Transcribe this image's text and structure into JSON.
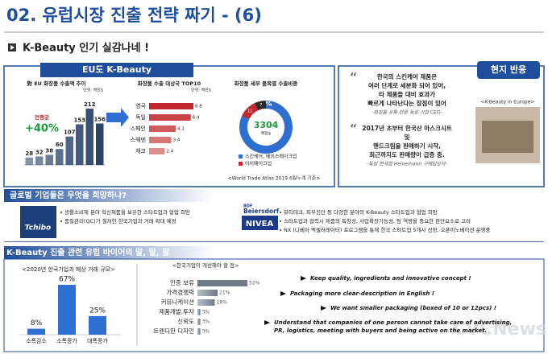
{
  "header": {
    "title": "02. 유럽시장 진출 전략 짜기 - (6)",
    "subtitle": "K-Beauty 인기 실감나네 !"
  },
  "eu_panel": {
    "title": "EU도 K-Beauty",
    "source": "<World Trade Atlas 2019.6월누계 기준>",
    "charts": [
      {
        "type": "bar",
        "title": "對 EU 화장품 수출액 추이",
        "unit": "단위: 백만$",
        "note_label": "연평균",
        "note_value": "+40%",
        "color": "#1f3864",
        "values": [
          28,
          32,
          38,
          60,
          107,
          153,
          212,
          156
        ]
      },
      {
        "type": "hbar",
        "title": "화장품 수출 대상국 TOP10",
        "unit": "단위: 백만$",
        "color": "#c0282d",
        "categories": [
          "영국",
          "독일",
          "스페인",
          "스웨덴",
          "체코"
        ],
        "values": [
          6.8,
          6.4,
          4.1,
          3.4,
          2.4
        ]
      },
      {
        "type": "donut",
        "title": "화장품 세부 품목별 수출비중",
        "center_value": "3304",
        "center_unit": "백만$",
        "colors": [
          "#2e6fd1",
          "#c0282d",
          "#2b2b2b"
        ],
        "values": [
          82,
          11,
          7
        ],
        "value_labels": [
          "82%",
          "11",
          "7"
        ],
        "legend": [
          "스킨케어, 베이스메이크업",
          "아이메이크업"
        ]
      }
    ]
  },
  "reaction_panel": {
    "title": "현지 반응",
    "quotes": [
      {
        "lines": [
          "한국의 스킨케어 제품은",
          "여러 단계로 세분화 되어 있어,",
          "타 제품들 대비 효과가",
          "빠르게 나타난다는 장점이 있어"
        ],
        "source": "-화장품 유통 전문 독일 기업 CEO-"
      },
      {
        "lines": [
          "2017년 초부터 한국산 마스크시트",
          "및",
          "핸드크림을 판매하기 시작,",
          "최근까지도 판매량이 급증 중."
        ],
        "source": "-독일 면세점 Heinemann 구매담당자-"
      }
    ],
    "photo_caption": "<K-Beauty in Europe>"
  },
  "global_section": {
    "title": "글로벌 기업들은 무엇을 희망하나?",
    "companies": [
      {
        "logo": [
          "Tchibo"
        ],
        "items": [
          "생활소비재 분야 혁신제품을 보유한 스타트업과 협업 희망",
          "품질관리(QC)가 철저한 한국기업과 거래 확대 예정"
        ]
      },
      {
        "logo": [
          "BDF",
          "Beiersdorf",
          "NIVEA"
        ],
        "items": [
          "뷰티테크, 피부진단 등 다양한 분야의 K-Beauty 스타트업과 협업 희망",
          "스타트업과 협력시 제품의 독창성, 사업확장가능성, 팀 역량을 중요한 판단요소로 고려",
          "NX (니베아 엑셀러레이터) 프로그램을 통해 한국 스타트업 5개사 선정, 오픈이노베이션 운영중"
        ]
      }
    ]
  },
  "buyer_section": {
    "title": "K-Beauty 진출 관련 유럽 바이어의 말, 말, 말",
    "charts": [
      {
        "type": "bar",
        "title": "<2020년 한국기업과 예상 거래 규모>",
        "color": "#2e6fd1",
        "categories": [
          "소폭감소",
          "소폭증가",
          "대폭증가"
        ],
        "values": [
          8,
          67,
          25
        ],
        "value_labels": [
          "8%",
          "67%",
          "25%"
        ]
      },
      {
        "type": "hbar",
        "title": "<한국기업이 개선해야 할 점>",
        "color": "#9aa3ad",
        "categories": [
          "인증 보유",
          "가격경쟁력",
          "커뮤니케이션",
          "제품개발,투자",
          "신뢰도",
          "트렌디한 디자인"
        ],
        "values": [
          52,
          21,
          18,
          3,
          3,
          3
        ],
        "value_labels": [
          "52%",
          "21%",
          "18%",
          "3%",
          "3%",
          "3%"
        ]
      }
    ],
    "quotes": [
      "Keep quality, ingredients and innovative concept !",
      "Packaging more clear-description in English !",
      "We want smaller packaging (boxed of 10 or 12pcs) !",
      "Understand that companies of one person cannot take care of advertising,",
      "PR, logistics, meeting with buyers and being active on the market."
    ]
  },
  "watermark": "CVCNews"
}
